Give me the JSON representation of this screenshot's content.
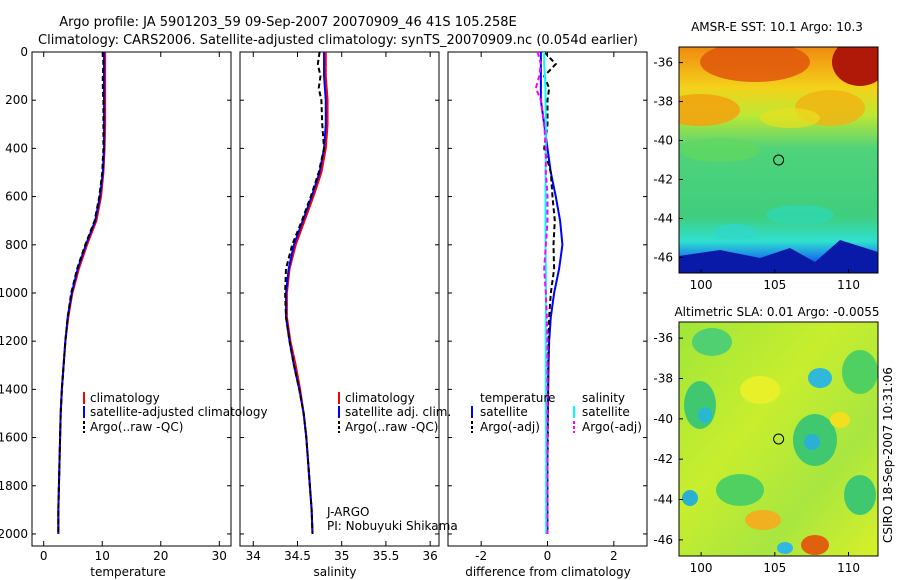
{
  "title_line1": "Argo profile: JA 5901203_59 09-Sep-2007 20070909_46 41S 105.258E",
  "title_line2": "Climatology: CARS2006. Satellite-adjusted climatology: synTS_20070909.nc (0.054d earlier)",
  "footer_stamp": "CSIRO 18-Sep-2007 10:31:06",
  "float_info": [
    "J-ARGO",
    "PI: Nobuyuki Shikama"
  ],
  "colors": {
    "climatology": "#ff0000",
    "satellite": "#0000ff",
    "argo": "#000000",
    "sal_satellite": "#00ffff",
    "sal_argo": "#ff00ff"
  },
  "chart_data": [
    {
      "type": "line",
      "id": "temperature",
      "xlabel": "temperature",
      "ylabel": "",
      "xlim": [
        -2,
        32
      ],
      "ylim": [
        2050,
        0
      ],
      "xticks": [
        0,
        10,
        20,
        30
      ],
      "yticks": [
        0,
        200,
        400,
        600,
        800,
        1000,
        1200,
        1400,
        1600,
        1800,
        2000
      ],
      "depth": [
        0,
        50,
        100,
        150,
        200,
        300,
        400,
        500,
        600,
        700,
        800,
        900,
        1000,
        1100,
        1200,
        1300,
        1400,
        1500,
        1600,
        1700,
        1800,
        1900,
        2000
      ],
      "series": [
        {
          "name": "climatology",
          "style": "solid",
          "color": "#ff0000",
          "values": [
            10.5,
            10.5,
            10.5,
            10.5,
            10.5,
            10.5,
            10.4,
            10.2,
            9.8,
            9.0,
            7.4,
            6.0,
            4.9,
            4.2,
            3.7,
            3.4,
            3.1,
            2.9,
            2.8,
            2.7,
            2.6,
            2.5,
            2.5
          ]
        },
        {
          "name": "satellite-adjusted climatology",
          "style": "solid",
          "color": "#0000ff",
          "values": [
            10.3,
            10.3,
            10.3,
            10.3,
            10.3,
            10.3,
            10.3,
            10.1,
            9.6,
            8.8,
            7.2,
            5.8,
            4.8,
            4.1,
            3.7,
            3.4,
            3.1,
            2.9,
            2.8,
            2.7,
            2.6,
            2.5,
            2.5
          ]
        },
        {
          "name": "Argo(..raw -QC)",
          "style": "dash",
          "color": "#000000",
          "values": [
            10.1,
            10.2,
            10.1,
            10.1,
            10.2,
            10.2,
            10.2,
            10.0,
            9.5,
            8.7,
            7.1,
            5.7,
            4.7,
            4.1,
            3.7,
            3.4,
            3.1,
            2.9,
            2.8,
            2.7,
            2.6,
            2.5,
            2.5
          ]
        }
      ],
      "legend": [
        "climatology",
        "satellite-adjusted climatology",
        "Argo(..raw -QC)"
      ]
    },
    {
      "type": "line",
      "id": "salinity",
      "xlabel": "salinity",
      "xlim": [
        33.85,
        36.1
      ],
      "ylim": [
        2050,
        0
      ],
      "xticks": [
        34,
        34.5,
        35,
        35.5,
        36
      ],
      "depth": [
        0,
        50,
        100,
        150,
        200,
        300,
        400,
        500,
        600,
        700,
        800,
        900,
        1000,
        1100,
        1200,
        1300,
        1400,
        1500,
        1600,
        1700,
        1800,
        1900,
        2000
      ],
      "series": [
        {
          "name": "climatology",
          "style": "solid",
          "color": "#ff0000",
          "values": [
            34.82,
            34.82,
            34.82,
            34.83,
            34.84,
            34.84,
            34.82,
            34.77,
            34.68,
            34.58,
            34.48,
            34.41,
            34.38,
            34.38,
            34.42,
            34.48,
            34.53,
            34.57,
            34.6,
            34.62,
            34.64,
            34.66,
            34.67
          ]
        },
        {
          "name": "satellite adj. clim.",
          "style": "solid",
          "color": "#0000ff",
          "values": [
            34.8,
            34.8,
            34.8,
            34.81,
            34.82,
            34.82,
            34.8,
            34.75,
            34.66,
            34.56,
            34.46,
            34.4,
            34.37,
            34.37,
            34.41,
            34.46,
            34.52,
            34.57,
            34.6,
            34.62,
            34.64,
            34.66,
            34.67
          ]
        },
        {
          "name": "Argo(..raw -QC)",
          "style": "dash",
          "color": "#000000",
          "values": [
            34.75,
            34.73,
            34.76,
            34.74,
            34.77,
            34.78,
            34.8,
            34.74,
            34.65,
            34.55,
            34.44,
            34.37,
            34.36,
            34.37,
            34.41,
            34.46,
            34.52,
            34.57,
            34.6,
            34.62,
            34.64,
            34.66,
            34.67
          ]
        }
      ],
      "legend": [
        "climatology",
        "satellite adj. clim.",
        "Argo(..raw -QC)"
      ]
    },
    {
      "type": "line",
      "id": "difference",
      "xlabel": "difference from climatology",
      "xlim": [
        -3,
        3
      ],
      "ylim": [
        2050,
        0
      ],
      "xticks": [
        -2,
        0,
        2
      ],
      "depth": [
        0,
        50,
        100,
        150,
        200,
        300,
        400,
        500,
        600,
        700,
        800,
        900,
        1000,
        1100,
        1200,
        1300,
        1400,
        1500,
        1600,
        1700,
        1800,
        1900,
        2000
      ],
      "series": [
        {
          "name": "temperature satellite",
          "style": "solid",
          "color": "#0000ff",
          "values": [
            -0.2,
            -0.2,
            -0.2,
            -0.2,
            -0.2,
            -0.1,
            0.0,
            0.1,
            0.25,
            0.38,
            0.45,
            0.35,
            0.2,
            0.1,
            0.05,
            0.03,
            0.02,
            0.01,
            0.0,
            0.0,
            0.0,
            0.0,
            0.0
          ]
        },
        {
          "name": "temperature Argo(-adj)",
          "style": "dash",
          "color": "#000000",
          "values": [
            -0.1,
            0.25,
            -0.1,
            0.05,
            0.0,
            0.0,
            -0.1,
            0.1,
            0.15,
            0.22,
            0.18,
            0.2,
            0.1,
            0.05,
            0.03,
            0.02,
            0.02,
            0.01,
            0.01,
            0.0,
            0.0,
            0.0,
            0.0
          ]
        },
        {
          "name": "salinity satellite",
          "style": "solid",
          "color": "#00ffff",
          "values": [
            -0.1,
            -0.1,
            -0.08,
            -0.06,
            -0.06,
            -0.05,
            -0.05,
            -0.06,
            -0.06,
            -0.06,
            -0.06,
            -0.05,
            -0.05,
            -0.05,
            -0.05,
            -0.05,
            -0.05,
            -0.05,
            -0.04,
            -0.04,
            -0.04,
            -0.04,
            -0.04
          ]
        },
        {
          "name": "salinity Argo(-adj)",
          "style": "dash",
          "color": "#ff00ff",
          "values": [
            -0.3,
            -0.2,
            -0.25,
            -0.35,
            -0.2,
            -0.1,
            -0.05,
            -0.05,
            0.0,
            0.0,
            -0.05,
            -0.1,
            -0.05,
            -0.02,
            0.0,
            0.0,
            0.0,
            0.0,
            0.0,
            0.0,
            0.0,
            0.0,
            0.0
          ]
        }
      ],
      "legend": {
        "temperature": "temperature",
        "salinity": "salinity",
        "items": [
          "satellite",
          "Argo(-adj)"
        ]
      }
    },
    {
      "type": "heatmap",
      "id": "sst_map",
      "title": "AMSR-E SST: 10.1 Argo: 10.3",
      "xlim": [
        98.5,
        112
      ],
      "ylim": [
        -46.8,
        -35.2
      ],
      "xticks": [
        100,
        105,
        110
      ],
      "yticks": [
        -36,
        -38,
        -40,
        -42,
        -44,
        -46
      ],
      "marker": {
        "lon": 105.258,
        "lat": -41
      }
    },
    {
      "type": "heatmap",
      "id": "sla_map",
      "title": "Altimetric SLA: 0.01 Argo: -0.0055",
      "xlim": [
        98.5,
        112
      ],
      "ylim": [
        -46.8,
        -35.2
      ],
      "xticks": [
        100,
        105,
        110
      ],
      "yticks": [
        -36,
        -38,
        -40,
        -42,
        -44,
        -46
      ],
      "marker": {
        "lon": 105.258,
        "lat": -41
      }
    }
  ]
}
